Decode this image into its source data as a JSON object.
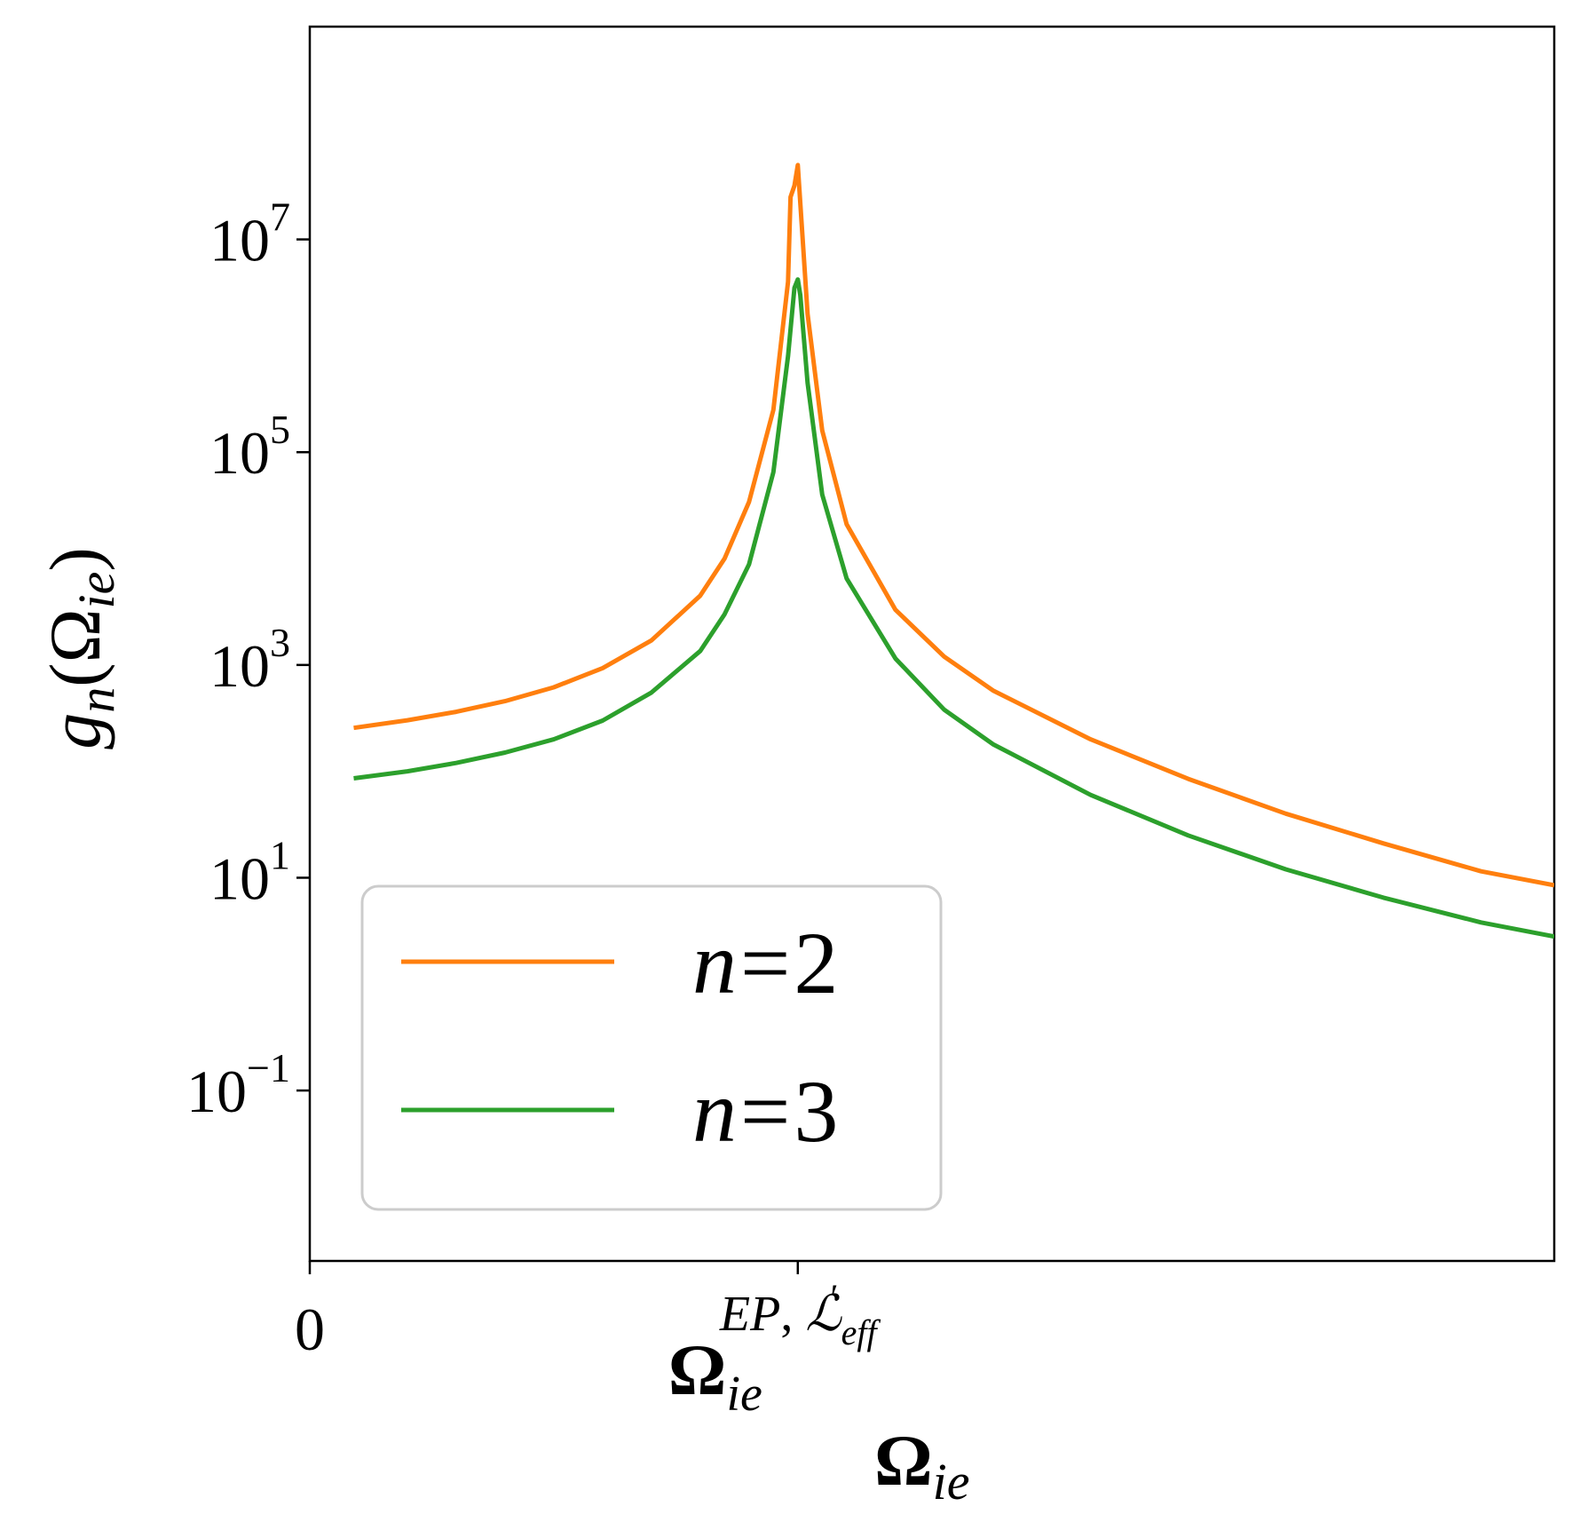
{
  "chart_data": {
    "type": "line",
    "title": "",
    "xlabel": "Ωie",
    "ylabel": "gn(Ωie)",
    "yscale": "log",
    "ylim": [
      0.0025,
      1000000000.0
    ],
    "xlim": [
      0,
      2.55
    ],
    "x_ticks": [
      {
        "x": 0,
        "label": "0"
      },
      {
        "x": 1,
        "label": "Ωie^EP,L'eff"
      }
    ],
    "y_ticks": [
      {
        "exp": -1,
        "label": "10^-1"
      },
      {
        "exp": 1,
        "label": "10^1"
      },
      {
        "exp": 3,
        "label": "10^3"
      },
      {
        "exp": 5,
        "label": "10^5"
      },
      {
        "exp": 7,
        "label": "10^7"
      }
    ],
    "grid": false,
    "legend_placement": "lower-left",
    "series": [
      {
        "name": "n = 2",
        "color": "#ff7f0e",
        "points": [
          [
            0.09,
            256
          ],
          [
            0.2,
            302
          ],
          [
            0.3,
            363
          ],
          [
            0.4,
            457
          ],
          [
            0.5,
            617
          ],
          [
            0.6,
            933
          ],
          [
            0.7,
            1700
          ],
          [
            0.8,
            4470
          ],
          [
            0.85,
            10000
          ],
          [
            0.9,
            34000
          ],
          [
            0.95,
            250000
          ],
          [
            0.98,
            4000000
          ],
          [
            0.985,
            25000000
          ],
          [
            0.993,
            32000000
          ],
          [
            1.0,
            50000000
          ],
          [
            1.02,
            2000000
          ],
          [
            1.05,
            160000
          ],
          [
            1.1,
            21000
          ],
          [
            1.2,
            3300
          ],
          [
            1.3,
            1200
          ],
          [
            1.4,
            575
          ],
          [
            1.6,
            200
          ],
          [
            1.8,
            85
          ],
          [
            2.0,
            40
          ],
          [
            2.2,
            21
          ],
          [
            2.4,
            11.5
          ],
          [
            2.55,
            8.5
          ]
        ]
      },
      {
        "name": "n = 3",
        "color": "#2ca02c",
        "points": [
          [
            0.09,
            86
          ],
          [
            0.2,
            100
          ],
          [
            0.3,
            120
          ],
          [
            0.4,
            150
          ],
          [
            0.5,
            200
          ],
          [
            0.6,
            300
          ],
          [
            0.7,
            550
          ],
          [
            0.8,
            1350
          ],
          [
            0.85,
            3000
          ],
          [
            0.9,
            8800
          ],
          [
            0.95,
            65000
          ],
          [
            0.98,
            800000
          ],
          [
            0.993,
            3500000
          ],
          [
            1.0,
            4200000
          ],
          [
            1.005,
            3000000
          ],
          [
            1.02,
            450000
          ],
          [
            1.05,
            40000
          ],
          [
            1.1,
            6500
          ],
          [
            1.2,
            1150
          ],
          [
            1.3,
            380
          ],
          [
            1.4,
            180
          ],
          [
            1.6,
            60
          ],
          [
            1.8,
            25
          ],
          [
            2.0,
            12
          ],
          [
            2.2,
            6.5
          ],
          [
            2.4,
            3.8
          ],
          [
            2.55,
            2.8
          ]
        ]
      }
    ]
  }
}
